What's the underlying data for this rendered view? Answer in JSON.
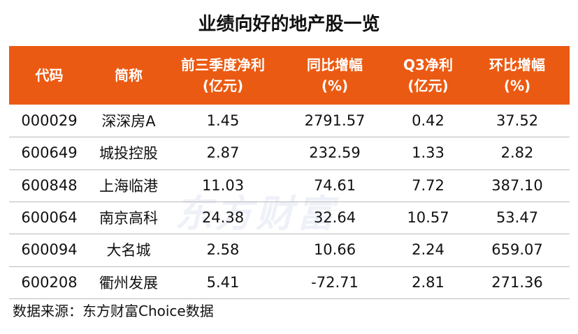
{
  "header": {
    "title": "业绩向好的地产股一览"
  },
  "table": {
    "columns": [
      "代码",
      "简称",
      "前三季度净利\n(亿元)",
      "同比增幅\n(%)",
      "Q3净利\n(亿元)",
      "环比增幅\n(%)"
    ],
    "rows": [
      [
        "000029",
        "深深房A",
        "1.45",
        "2791.57",
        "0.42",
        "37.52"
      ],
      [
        "600649",
        "城投控股",
        "2.87",
        "232.59",
        "1.33",
        "2.82"
      ],
      [
        "600848",
        "上海临港",
        "11.03",
        "74.61",
        "7.72",
        "387.10"
      ],
      [
        "600064",
        "南京高科",
        "24.38",
        "32.64",
        "10.57",
        "53.47"
      ],
      [
        "600094",
        "大名城",
        "2.58",
        "10.66",
        "2.24",
        "659.07"
      ],
      [
        "600208",
        "衢州发展",
        "5.41",
        "-72.71",
        "2.81",
        "271.36"
      ]
    ]
  },
  "watermark": "东方财富",
  "footer": {
    "source": "数据来源：东方财富Choice数据"
  }
}
